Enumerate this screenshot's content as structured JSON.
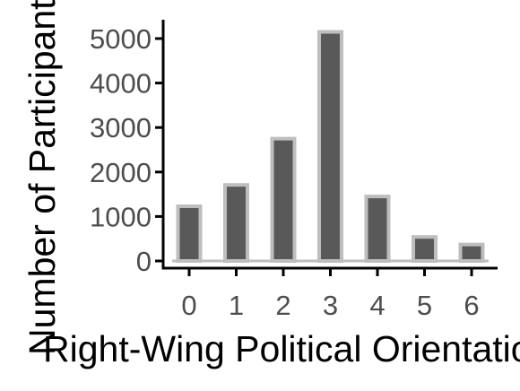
{
  "chart_data": {
    "type": "bar",
    "title": "",
    "xlabel": "Right-Wing Political Orientation",
    "ylabel": "Number of Participants",
    "categories": [
      "0",
      "1",
      "2",
      "3",
      "4",
      "5",
      "6"
    ],
    "values": [
      1230,
      1710,
      2750,
      5150,
      1450,
      540,
      370
    ],
    "yticks": [
      0,
      1000,
      2000,
      3000,
      4000,
      5000
    ],
    "ytick_labels": [
      "0",
      "1000",
      "2000",
      "3000",
      "4000",
      "5000"
    ],
    "ylim": [
      0,
      5400
    ],
    "grid": false,
    "legend": "none",
    "colors": {
      "bar_fill": "#595959",
      "bar_outline": "#bebebe",
      "axis": "#000000",
      "tick_text": "#4d4d4d"
    }
  }
}
